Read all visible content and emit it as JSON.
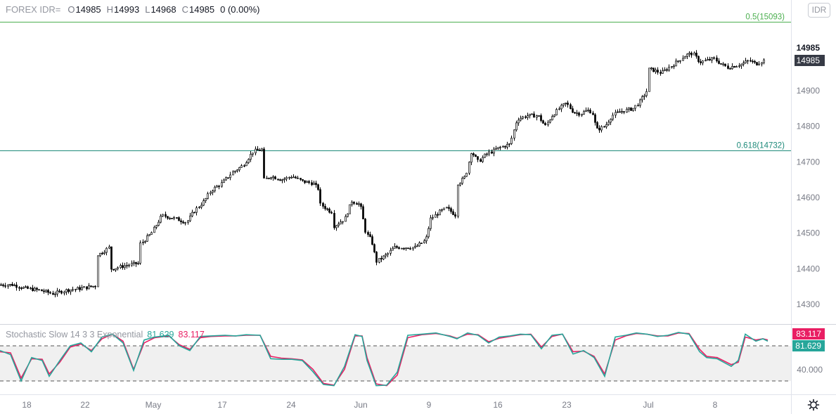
{
  "header": {
    "symbol": "FOREX IDR=",
    "open_key": "O",
    "open": "14985",
    "high_key": "H",
    "high": "14993",
    "low_key": "L",
    "low": "14968",
    "close_key": "C",
    "close": "14985",
    "change": "0 (0.00%)"
  },
  "currency_button": "IDR",
  "indicator": {
    "name": "Stochastic Slow 14 3 3 Exponential",
    "k_value": "81.629",
    "d_value": "83.117",
    "k_color": "#26a69a",
    "d_color": "#e91e63",
    "axis_label": "40.000"
  },
  "colors": {
    "up": "#000000",
    "fib": "#1e8a7a",
    "fib_top": "#4caf50",
    "price_label": "#363a45"
  },
  "chart_data": {
    "type": "candlestick",
    "title": "FOREX IDR=",
    "y_ticks": [
      14300,
      14400,
      14500,
      14600,
      14700,
      14800,
      14900
    ],
    "ylim": [
      14250,
      15150
    ],
    "x_ticks": [
      "18",
      "22",
      "May",
      "17",
      "24",
      "Jun",
      "9",
      "16",
      "23",
      "Jul",
      "8"
    ],
    "last_price": 14985,
    "fib_levels": [
      {
        "label": "0.5(15093)",
        "value": 15093
      },
      {
        "label": "0.618(14732)",
        "value": 14732
      }
    ],
    "price_path": [
      [
        0,
        14355
      ],
      [
        18,
        14355
      ],
      [
        35,
        14345
      ],
      [
        55,
        14340
      ],
      [
        75,
        14330
      ],
      [
        95,
        14340
      ],
      [
        115,
        14345
      ],
      [
        135,
        14352
      ],
      [
        140,
        14440
      ],
      [
        155,
        14460
      ],
      [
        160,
        14400
      ],
      [
        180,
        14410
      ],
      [
        195,
        14415
      ],
      [
        200,
        14470
      ],
      [
        215,
        14500
      ],
      [
        230,
        14550
      ],
      [
        250,
        14540
      ],
      [
        265,
        14530
      ],
      [
        275,
        14560
      ],
      [
        290,
        14590
      ],
      [
        300,
        14620
      ],
      [
        315,
        14640
      ],
      [
        330,
        14670
      ],
      [
        345,
        14690
      ],
      [
        360,
        14730
      ],
      [
        372,
        14735
      ],
      [
        376,
        14650
      ],
      [
        385,
        14660
      ],
      [
        400,
        14650
      ],
      [
        415,
        14660
      ],
      [
        430,
        14645
      ],
      [
        445,
        14640
      ],
      [
        452,
        14625
      ],
      [
        456,
        14580
      ],
      [
        470,
        14560
      ],
      [
        475,
        14520
      ],
      [
        490,
        14540
      ],
      [
        500,
        14590
      ],
      [
        512,
        14580
      ],
      [
        520,
        14500
      ],
      [
        528,
        14480
      ],
      [
        535,
        14420
      ],
      [
        550,
        14440
      ],
      [
        560,
        14460
      ],
      [
        575,
        14460
      ],
      [
        590,
        14460
      ],
      [
        605,
        14480
      ],
      [
        612,
        14540
      ],
      [
        625,
        14560
      ],
      [
        635,
        14570
      ],
      [
        648,
        14550
      ],
      [
        652,
        14640
      ],
      [
        662,
        14660
      ],
      [
        670,
        14730
      ],
      [
        680,
        14700
      ],
      [
        690,
        14720
      ],
      [
        700,
        14730
      ],
      [
        710,
        14740
      ],
      [
        725,
        14750
      ],
      [
        735,
        14820
      ],
      [
        750,
        14830
      ],
      [
        765,
        14830
      ],
      [
        775,
        14800
      ],
      [
        785,
        14830
      ],
      [
        795,
        14850
      ],
      [
        805,
        14865
      ],
      [
        815,
        14840
      ],
      [
        825,
        14835
      ],
      [
        835,
        14845
      ],
      [
        842,
        14840
      ],
      [
        848,
        14790
      ],
      [
        860,
        14800
      ],
      [
        870,
        14830
      ],
      [
        880,
        14840
      ],
      [
        890,
        14845
      ],
      [
        900,
        14850
      ],
      [
        910,
        14870
      ],
      [
        920,
        14900
      ],
      [
        925,
        14960
      ],
      [
        940,
        14950
      ],
      [
        955,
        14970
      ],
      [
        965,
        14985
      ],
      [
        975,
        15000
      ],
      [
        985,
        15005
      ],
      [
        995,
        14980
      ],
      [
        1005,
        14985
      ],
      [
        1015,
        14990
      ],
      [
        1025,
        14975
      ],
      [
        1035,
        14965
      ],
      [
        1045,
        14970
      ],
      [
        1055,
        14975
      ],
      [
        1065,
        14985
      ],
      [
        1075,
        14975
      ],
      [
        1085,
        14985
      ]
    ],
    "stoch_k": [
      [
        0,
        72
      ],
      [
        15,
        65
      ],
      [
        30,
        20
      ],
      [
        45,
        60
      ],
      [
        60,
        55
      ],
      [
        70,
        28
      ],
      [
        85,
        55
      ],
      [
        100,
        80
      ],
      [
        115,
        85
      ],
      [
        130,
        70
      ],
      [
        145,
        95
      ],
      [
        160,
        100
      ],
      [
        175,
        85
      ],
      [
        190,
        38
      ],
      [
        205,
        90
      ],
      [
        220,
        95
      ],
      [
        240,
        98
      ],
      [
        255,
        80
      ],
      [
        270,
        72
      ],
      [
        285,
        96
      ],
      [
        300,
        97
      ],
      [
        320,
        98
      ],
      [
        335,
        97
      ],
      [
        350,
        99
      ],
      [
        370,
        98
      ],
      [
        385,
        58
      ],
      [
        400,
        57
      ],
      [
        415,
        57
      ],
      [
        430,
        55
      ],
      [
        445,
        36
      ],
      [
        460,
        14
      ],
      [
        475,
        12
      ],
      [
        490,
        45
      ],
      [
        505,
        99
      ],
      [
        515,
        96
      ],
      [
        522,
        55
      ],
      [
        535,
        12
      ],
      [
        550,
        13
      ],
      [
        565,
        35
      ],
      [
        580,
        98
      ],
      [
        600,
        100
      ],
      [
        620,
        102
      ],
      [
        640,
        96
      ],
      [
        650,
        92
      ],
      [
        665,
        102
      ],
      [
        680,
        98
      ],
      [
        695,
        85
      ],
      [
        710,
        95
      ],
      [
        725,
        97
      ],
      [
        740,
        100
      ],
      [
        755,
        99
      ],
      [
        770,
        75
      ],
      [
        785,
        98
      ],
      [
        800,
        100
      ],
      [
        815,
        66
      ],
      [
        830,
        72
      ],
      [
        845,
        60
      ],
      [
        860,
        28
      ],
      [
        875,
        95
      ],
      [
        890,
        98
      ],
      [
        905,
        102
      ],
      [
        920,
        100
      ],
      [
        935,
        96
      ],
      [
        950,
        98
      ],
      [
        965,
        103
      ],
      [
        980,
        100
      ],
      [
        995,
        70
      ],
      [
        1005,
        60
      ],
      [
        1020,
        58
      ],
      [
        1040,
        45
      ],
      [
        1050,
        55
      ],
      [
        1060,
        100
      ],
      [
        1075,
        88
      ],
      [
        1085,
        92
      ],
      [
        1092,
        88
      ]
    ],
    "stoch_d": [
      [
        0,
        70
      ],
      [
        15,
        68
      ],
      [
        30,
        25
      ],
      [
        45,
        58
      ],
      [
        60,
        57
      ],
      [
        70,
        32
      ],
      [
        85,
        52
      ],
      [
        100,
        78
      ],
      [
        115,
        83
      ],
      [
        130,
        72
      ],
      [
        145,
        92
      ],
      [
        160,
        100
      ],
      [
        175,
        88
      ],
      [
        190,
        40
      ],
      [
        205,
        85
      ],
      [
        220,
        94
      ],
      [
        240,
        97
      ],
      [
        255,
        82
      ],
      [
        270,
        74
      ],
      [
        285,
        94
      ],
      [
        300,
        96
      ],
      [
        320,
        97
      ],
      [
        335,
        97
      ],
      [
        350,
        98
      ],
      [
        370,
        98
      ],
      [
        385,
        62
      ],
      [
        400,
        59
      ],
      [
        415,
        58
      ],
      [
        430,
        56
      ],
      [
        445,
        40
      ],
      [
        460,
        16
      ],
      [
        475,
        13
      ],
      [
        490,
        40
      ],
      [
        505,
        97
      ],
      [
        515,
        97
      ],
      [
        522,
        60
      ],
      [
        535,
        15
      ],
      [
        550,
        12
      ],
      [
        565,
        30
      ],
      [
        580,
        94
      ],
      [
        600,
        99
      ],
      [
        620,
        101
      ],
      [
        640,
        97
      ],
      [
        650,
        93
      ],
      [
        665,
        100
      ],
      [
        680,
        99
      ],
      [
        695,
        87
      ],
      [
        710,
        93
      ],
      [
        725,
        96
      ],
      [
        740,
        99
      ],
      [
        755,
        100
      ],
      [
        770,
        78
      ],
      [
        785,
        96
      ],
      [
        800,
        100
      ],
      [
        815,
        70
      ],
      [
        830,
        71
      ],
      [
        845,
        62
      ],
      [
        860,
        32
      ],
      [
        875,
        90
      ],
      [
        890,
        97
      ],
      [
        905,
        101
      ],
      [
        920,
        100
      ],
      [
        935,
        97
      ],
      [
        950,
        97
      ],
      [
        965,
        102
      ],
      [
        980,
        101
      ],
      [
        995,
        74
      ],
      [
        1005,
        62
      ],
      [
        1020,
        60
      ],
      [
        1040,
        48
      ],
      [
        1050,
        52
      ],
      [
        1060,
        95
      ],
      [
        1075,
        90
      ],
      [
        1085,
        92
      ],
      [
        1092,
        90
      ]
    ],
    "stoch_levels": [
      80,
      20
    ]
  }
}
